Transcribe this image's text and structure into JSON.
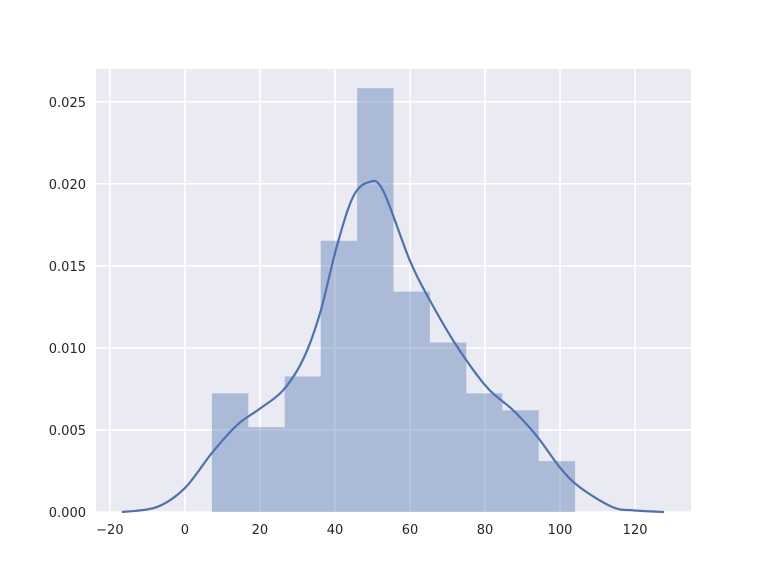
{
  "chart_data": {
    "type": "bar",
    "subtype": "histogram with kde line",
    "title": "",
    "xlabel": "",
    "ylabel": "",
    "xlim": [
      -23.7,
      134.9
    ],
    "ylim": [
      0,
      0.027
    ],
    "grid": true,
    "xticks": [
      -20,
      0,
      20,
      40,
      60,
      80,
      100,
      120
    ],
    "xtick_labels": [
      "−20",
      "0",
      "20",
      "40",
      "60",
      "80",
      "100",
      "120"
    ],
    "yticks": [
      0,
      0.005,
      0.01,
      0.015,
      0.02,
      0.025
    ],
    "ytick_labels": [
      "0.000",
      "0.005",
      "0.010",
      "0.015",
      "0.020",
      "0.025"
    ],
    "bin_edges": [
      7.2,
      16.9,
      26.6,
      36.2,
      45.9,
      55.6,
      65.3,
      75.0,
      84.6,
      94.3,
      104.0
    ],
    "density": [
      0.00723,
      0.00517,
      0.00826,
      0.01653,
      0.02583,
      0.01343,
      0.01033,
      0.00723,
      0.0062,
      0.0031
    ],
    "kde": {
      "x": [
        -16.8,
        -7.5,
        0,
        7.2,
        13.9,
        20,
        26.1,
        31.5,
        36,
        40.5,
        44.8,
        49,
        52.8,
        60,
        65.3,
        72.5,
        80.5,
        87.5,
        93.9,
        100,
        105.3,
        114,
        119.5,
        127.7
      ],
      "y": [
        0,
        0.0003,
        0.00146,
        0.0036,
        0.0053,
        0.0063,
        0.0074,
        0.0093,
        0.0121,
        0.0162,
        0.0192,
        0.0201,
        0.0196,
        0.0153,
        0.0129,
        0.0101,
        0.0076,
        0.0062,
        0.0046,
        0.0027,
        0.0015,
        0.0003,
        0.0001,
        0
      ]
    },
    "colors": {
      "bars": "#4c72b0",
      "bar_opacity": 0.4,
      "line": "#4c72b0",
      "background": "#eaeaf2",
      "grid": "#ffffff"
    }
  }
}
